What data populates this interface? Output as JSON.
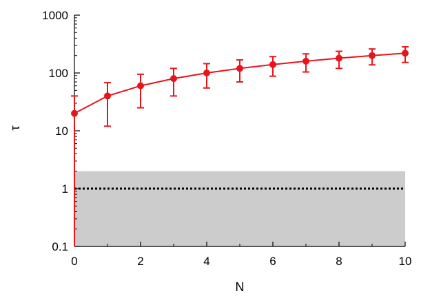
{
  "chart_data": {
    "type": "line",
    "xlabel": "N",
    "ylabel": "τ",
    "xlim": [
      0,
      10
    ],
    "ylim": [
      0.1,
      1000
    ],
    "yscale": "log",
    "x_ticks": [
      "0",
      "2",
      "4",
      "6",
      "8",
      "10"
    ],
    "y_ticks": [
      "0.1",
      "1",
      "10",
      "100",
      "1000"
    ],
    "series": [
      {
        "color": "#e8141c",
        "marker": "circle",
        "x": [
          0,
          1,
          2,
          3,
          4,
          5,
          6,
          7,
          8,
          9,
          10
        ],
        "y": [
          20,
          40,
          60,
          80,
          100,
          120,
          140,
          160,
          180,
          200,
          220
        ],
        "err_low": [
          0.1,
          12,
          25,
          40,
          55,
          70,
          88,
          104,
          120,
          138,
          152
        ],
        "err_high": [
          40,
          68,
          95,
          120,
          145,
          168,
          192,
          214,
          237,
          260,
          283
        ]
      }
    ],
    "reference_line": {
      "y": 1,
      "style": "dotted",
      "color": "#000000"
    },
    "band": {
      "y_low": 0.1,
      "y_high": 2,
      "x_low": 0,
      "x_high": 10,
      "color": "#cccccc"
    },
    "grid": false,
    "legend": "none"
  }
}
